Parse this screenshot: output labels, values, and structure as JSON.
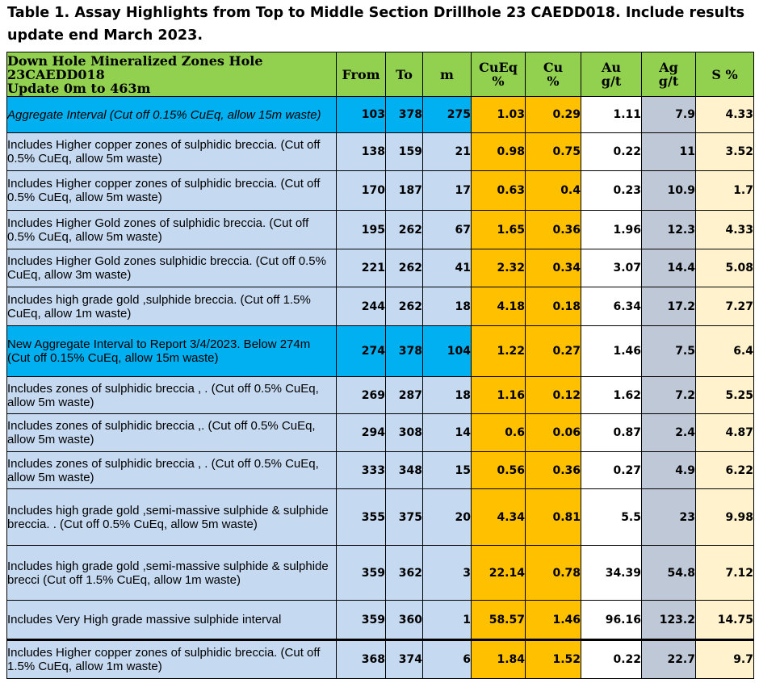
{
  "title": "Table 1. Assay Highlights from Top to Middle Section Drillhole 23 CAEDD018. Include results update end March 2023.",
  "headers": {
    "desc_line1": "Down Hole Mineralized Zones Hole 23CAEDD018",
    "desc_line2": "Update 0m to 463m",
    "from": "From",
    "to": "To",
    "m": "m",
    "cueq_line1": "CuEq",
    "cueq_line2": "%",
    "cu_line1": "Cu",
    "cu_line2": "%",
    "au_line1": "Au",
    "au_line2": "g/t",
    "ag_line1": "Ag",
    "ag_line2": "g/t",
    "s": "S %"
  },
  "colors": {
    "header": "#92d050",
    "aggregate": "#00b0f0",
    "normal": "#c5d9f1",
    "cu_columns": "#ffc000",
    "au_column": "#ffffff",
    "ag_column": "#bfc8d6",
    "s_column": "#fff2cc"
  },
  "rows": [
    {
      "desc": "Aggregate Interval  (Cut off 0.15% CuEq, allow 15m waste)",
      "from": "103",
      "to": "378",
      "m": "275",
      "cueq": "1.03",
      "cu": "0.29",
      "au": "1.11",
      "ag": "7.9",
      "s": "4.33"
    },
    {
      "desc": "Includes Higher copper zones of sulphidic breccia. (Cut off 0.5% CuEq, allow 5m waste)",
      "from": "138",
      "to": "159",
      "m": "21",
      "cueq": "0.98",
      "cu": "0.75",
      "au": "0.22",
      "ag": "11",
      "s": "3.52"
    },
    {
      "desc": "Includes Higher copper  zones of sulphidic breccia. (Cut off 0.5% CuEq, allow 5m waste)",
      "from": "170",
      "to": "187",
      "m": "17",
      "cueq": "0.63",
      "cu": "0.4",
      "au": "0.23",
      "ag": "10.9",
      "s": "1.7"
    },
    {
      "desc": "Includes Higher Gold zones of sulphidic breccia. (Cut off 0.5% CuEq, allow 5m waste)",
      "from": "195",
      "to": "262",
      "m": "67",
      "cueq": "1.65",
      "cu": "0.36",
      "au": "1.96",
      "ag": "12.3",
      "s": "4.33"
    },
    {
      "desc": "Includes Higher Gold zones sulphidic breccia. (Cut off 0.5% CuEq, allow 3m waste)",
      "from": "221",
      "to": "262",
      "m": "41",
      "cueq": "2.32",
      "cu": "0.34",
      "au": "3.07",
      "ag": "14.4",
      "s": "5.08"
    },
    {
      "desc": "Includes high grade gold ,sulphide breccia. (Cut off 1.5% CuEq, allow 1m waste)",
      "from": "244",
      "to": "262",
      "m": "18",
      "cueq": "4.18",
      "cu": "0.18",
      "au": "6.34",
      "ag": "17.2",
      "s": "7.27"
    },
    {
      "desc": "New Aggregate Interval to Report 3/4/2023. Below 274m (Cut off 0.15% CuEq, allow 15m waste)",
      "from": "274",
      "to": "378",
      "m": "104",
      "cueq": "1.22",
      "cu": "0.27",
      "au": "1.46",
      "ag": "7.5",
      "s": "6.4"
    },
    {
      "desc": "Includes zones of sulphidic breccia , . (Cut off 0.5% CuEq, allow 5m waste)",
      "from": "269",
      "to": "287",
      "m": "18",
      "cueq": "1.16",
      "cu": "0.12",
      "au": "1.62",
      "ag": "7.2",
      "s": "5.25"
    },
    {
      "desc": "Includes zones of sulphidic breccia ,. (Cut off 0.5% CuEq, allow 5m waste)",
      "from": "294",
      "to": "308",
      "m": "14",
      "cueq": "0.6",
      "cu": "0.06",
      "au": "0.87",
      "ag": "2.4",
      "s": "4.87"
    },
    {
      "desc": "Includes zones of sulphidic breccia , . (Cut off 0.5% CuEq, allow 5m waste)",
      "from": "333",
      "to": "348",
      "m": "15",
      "cueq": "0.56",
      "cu": "0.36",
      "au": "0.27",
      "ag": "4.9",
      "s": "6.22"
    },
    {
      "desc": "Includes high grade gold ,semi-massive sulphide & sulphide breccia. . (Cut off 0.5% CuEq, allow 5m waste)",
      "from": "355",
      "to": "375",
      "m": "20",
      "cueq": "4.34",
      "cu": "0.81",
      "au": "5.5",
      "ag": "23",
      "s": "9.98"
    },
    {
      "desc": "Includes high grade gold ,semi-massive sulphide & sulphide brecci (Cut off 1.5% CuEq, allow 1m waste)",
      "from": "359",
      "to": "362",
      "m": "3",
      "cueq": "22.14",
      "cu": "0.78",
      "au": "34.39",
      "ag": "54.8",
      "s": "7.12"
    },
    {
      "desc": "Includes Very High grade massive sulphide interval",
      "from": "359",
      "to": "360",
      "m": "1",
      "cueq": "58.57",
      "cu": "1.46",
      "au": "96.16",
      "ag": "123.2",
      "s": "14.75"
    },
    {
      "desc": "Includes Higher copper  zones of sulphidic breccia. (Cut off 1.5% CuEq, allow 1m waste)",
      "from": "368",
      "to": "374",
      "m": "6",
      "cueq": "1.84",
      "cu": "1.52",
      "au": "0.22",
      "ag": "22.7",
      "s": "9.7"
    }
  ]
}
